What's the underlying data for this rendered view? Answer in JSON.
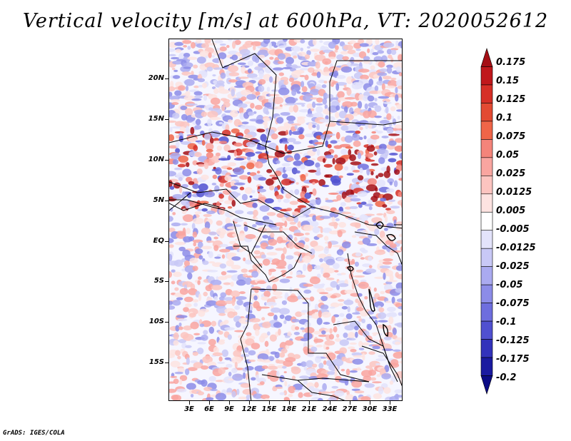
{
  "title": "Vertical velocity [m/s] at 600hPa, VT: 2020052612",
  "footer": "GrADS: IGES/COLA",
  "latitude_labels": [
    "20N",
    "15N",
    "10N",
    "5N",
    "EQ",
    "5S",
    "10S",
    "15S"
  ],
  "longitude_labels": [
    "3E",
    "6E",
    "9E",
    "12E",
    "15E",
    "18E",
    "21E",
    "24E",
    "27E",
    "30E",
    "33E"
  ],
  "colorbar": {
    "labels": [
      "0.175",
      "0.15",
      "0.125",
      "0.1",
      "0.075",
      "0.05",
      "0.025",
      "0.0125",
      "0.005",
      "-0.005",
      "-0.0125",
      "-0.025",
      "-0.05",
      "-0.075",
      "-0.1",
      "-0.125",
      "-0.175",
      "-0.2"
    ],
    "colors": [
      "#a50f15",
      "#c0181c",
      "#d62f27",
      "#e34a33",
      "#ef6548",
      "#f4847a",
      "#f9a5a0",
      "#fcc4c0",
      "#fde3e1",
      "#ffffff",
      "#e3e3fb",
      "#c8c8f6",
      "#aaaaf0",
      "#8c8ce8",
      "#6e6ede",
      "#5050d0",
      "#3232bb",
      "#1a1aa0",
      "#0b0b85"
    ]
  }
}
